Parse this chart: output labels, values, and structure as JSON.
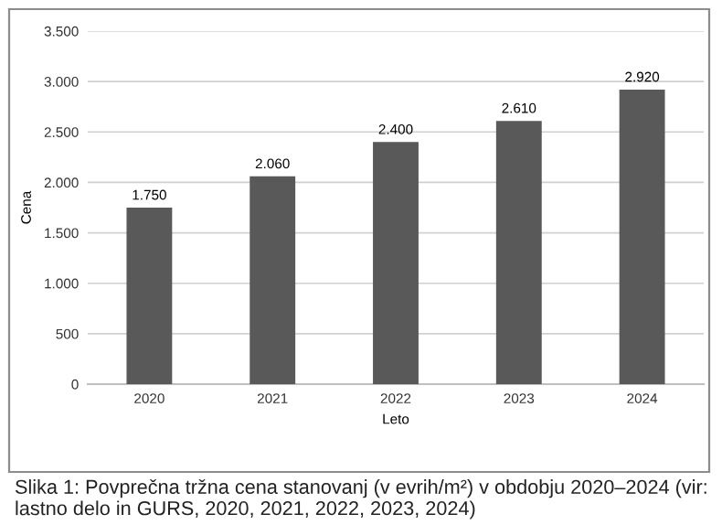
{
  "chart_data": {
    "type": "bar",
    "categories": [
      "2020",
      "2021",
      "2022",
      "2023",
      "2024"
    ],
    "values": [
      1750,
      2060,
      2400,
      2610,
      2920
    ],
    "value_labels": [
      "1.750",
      "2.060",
      "2.400",
      "2.610",
      "2.920"
    ],
    "color": "#595959",
    "xlabel": "Leto",
    "ylabel": "Cena",
    "ylim": [
      0,
      3500
    ],
    "yticks": [
      {
        "value": 0,
        "label": "0"
      },
      {
        "value": 500,
        "label": "500"
      },
      {
        "value": 1000,
        "label": "1.000"
      },
      {
        "value": 1500,
        "label": "1.500"
      },
      {
        "value": 2000,
        "label": "2.000"
      },
      {
        "value": 2500,
        "label": "2.500"
      },
      {
        "value": 3000,
        "label": "3.000"
      },
      {
        "value": 3500,
        "label": "3.500"
      }
    ],
    "grid": "y",
    "legend": false,
    "annotations": [
      "Slika 1: Povprečna tržna cena stanovanj (v evrih/m²) v obdobju 2020–2024 (vir: lastno delo in GURS, 2020, 2021, 2022, 2023, 2024)"
    ]
  }
}
